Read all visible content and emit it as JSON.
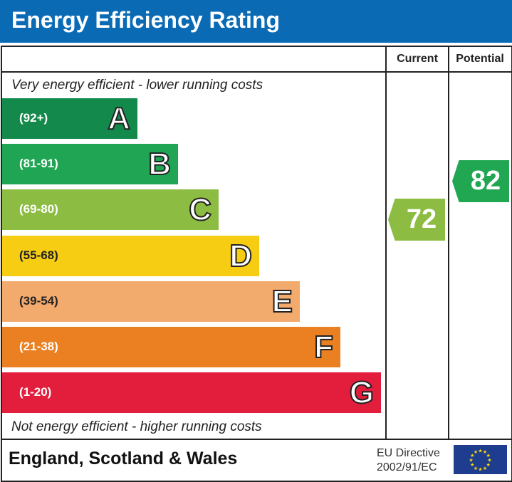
{
  "title": "Energy Efficiency Rating",
  "columns": {
    "current": "Current",
    "potential": "Potential"
  },
  "top_note": "Very energy efficient - lower running costs",
  "bottom_note": "Not energy efficient - higher running costs",
  "footer": {
    "region": "England, Scotland & Wales",
    "directive_line1": "EU Directive",
    "directive_line2": "2002/91/EC"
  },
  "chart_data": {
    "type": "bar",
    "categories": [
      "A",
      "B",
      "C",
      "D",
      "E",
      "F",
      "G"
    ],
    "ranges": [
      "(92+)",
      "(81-91)",
      "(69-80)",
      "(55-68)",
      "(39-54)",
      "(21-38)",
      "(1-20)"
    ],
    "colors": [
      "#138a4c",
      "#1fa553",
      "#8cbc42",
      "#f7cd14",
      "#f3aa6d",
      "#ea8022",
      "#e31d3c"
    ],
    "current": {
      "value": 72,
      "color": "#8cbc42"
    },
    "potential": {
      "value": 82,
      "color": "#21a652"
    }
  }
}
